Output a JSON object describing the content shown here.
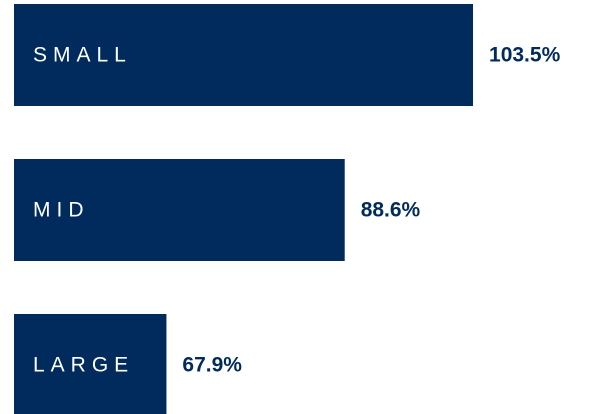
{
  "chart_data": {
    "type": "bar",
    "orientation": "horizontal",
    "categories": [
      "SMALL",
      "MID",
      "LARGE"
    ],
    "values": [
      103.5,
      88.6,
      67.9
    ],
    "value_labels": [
      "103.5%",
      "88.6%",
      "67.9%"
    ],
    "color": "#002b5c",
    "label_color": "#002b5c",
    "xlim": [
      50.2,
      110
    ]
  }
}
